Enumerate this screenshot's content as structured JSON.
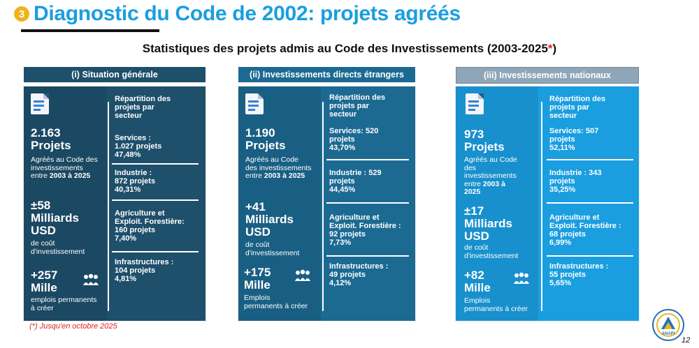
{
  "header": {
    "badge_number": "3",
    "title": "Diagnostic du Code de 2002: projets agréés",
    "subtitle": "Statistiques des projets admis au Code des Investissements (2003-2025",
    "subtitle_star": "*",
    "subtitle_end": ")"
  },
  "columns": [
    {
      "heading": "(i) Situation générale",
      "projects_count": "2.163",
      "projects_word": "Projets",
      "approved_lines": [
        "Agréés  au Code des",
        "investissements",
        "entre"
      ],
      "approved_range": "2003 à 2025",
      "amount": "±58",
      "amount_unit_1": "Milliards",
      "amount_unit_2": "USD",
      "amount_desc": [
        "de coût",
        "d'investissement"
      ],
      "jobs": "+257",
      "jobs_unit": "Mille",
      "jobs_desc": [
        "emplois permanents",
        "à créer"
      ],
      "sector_title": [
        "Répartition des",
        "projets par",
        "secteur"
      ],
      "sectors": [
        {
          "lines": [
            "Services :",
            "1.027 projets",
            "47,48%"
          ]
        },
        {
          "lines": [
            "Industrie :",
            "872 projets",
            "40,31%"
          ]
        },
        {
          "lines": [
            "Agriculture et",
            "Exploit. Forestière:",
            "160 projets",
            "7,40%"
          ]
        },
        {
          "lines": [
            "Infrastructures :",
            "104 projets",
            "4,81%"
          ]
        }
      ]
    },
    {
      "heading": "(ii) Investissements directs étrangers",
      "projects_count": "1.190",
      "projects_word": "Projets",
      "approved_lines": [
        "Agréés  au Code",
        "des investissements",
        "entre"
      ],
      "approved_range": "2003 à 2025",
      "amount": "+41",
      "amount_unit_1": "Milliards",
      "amount_unit_2": "USD",
      "amount_desc": [
        "de coût",
        "d'investissement"
      ],
      "jobs": "+175",
      "jobs_unit": "Mille",
      "jobs_desc": [
        "Emplois",
        "permanents à créer"
      ],
      "sector_title": [
        "Répartition des",
        "projets par",
        "secteur"
      ],
      "sectors": [
        {
          "lines": [
            "Services: 520",
            "projets",
            "43,70%"
          ]
        },
        {
          "lines": [
            "Industrie :   529",
            "projets",
            "44,45%"
          ]
        },
        {
          "lines": [
            "Agriculture et",
            "Exploit. Forestière :",
            "92 projets",
            "7,73%"
          ]
        },
        {
          "lines": [
            "Infrastructures :",
            "49 projets",
            "4,12%"
          ]
        }
      ]
    },
    {
      "heading": "(iii) Investissements nationaux",
      "projects_count": "973",
      "projects_word": "Projets",
      "approved_lines": [
        "Agréés  au Code",
        "des",
        "investissements",
        "entre"
      ],
      "approved_range": "2003 à",
      "approved_range_2": "2025",
      "amount": "±17",
      "amount_unit_1": "Milliards",
      "amount_unit_2": "USD",
      "amount_desc": [
        "de coût",
        "d'investissement"
      ],
      "jobs": "+82",
      "jobs_unit": "Mille",
      "jobs_desc": [
        "Emplois",
        "permanents à créer"
      ],
      "sector_title": [
        "Répartition des",
        "projets par",
        "secteur"
      ],
      "sectors": [
        {
          "lines": [
            "Services: 507",
            "projets",
            "52,11%"
          ]
        },
        {
          "lines": [
            "Industrie :  343",
            "projets",
            "35,25%"
          ]
        },
        {
          "lines": [
            "Agriculture et",
            "Exploit. Forestière :",
            "68 projets",
            "6,99%"
          ]
        },
        {
          "lines": [
            "Infrastructures :",
            " 55 projets",
            "5,65%"
          ]
        }
      ]
    }
  ],
  "footnote": "(*) Jusqu'en octobre 2025",
  "page_number": "12",
  "logo_text": "ANAPI",
  "colors": {
    "title": "#1a9ee0",
    "badge": "#f2b21b",
    "col1_box": "#1e4f6b",
    "col1_left": "#1b4862",
    "col2_box": "#1c6a92",
    "col2_left": "#195f83",
    "col3_box": "#1a9ee0",
    "col3_left": "#1890cd",
    "head1": "#1e4f6b",
    "head2": "#1c6a92",
    "head3": "#8ea6b8",
    "footnote": "#e02020"
  }
}
